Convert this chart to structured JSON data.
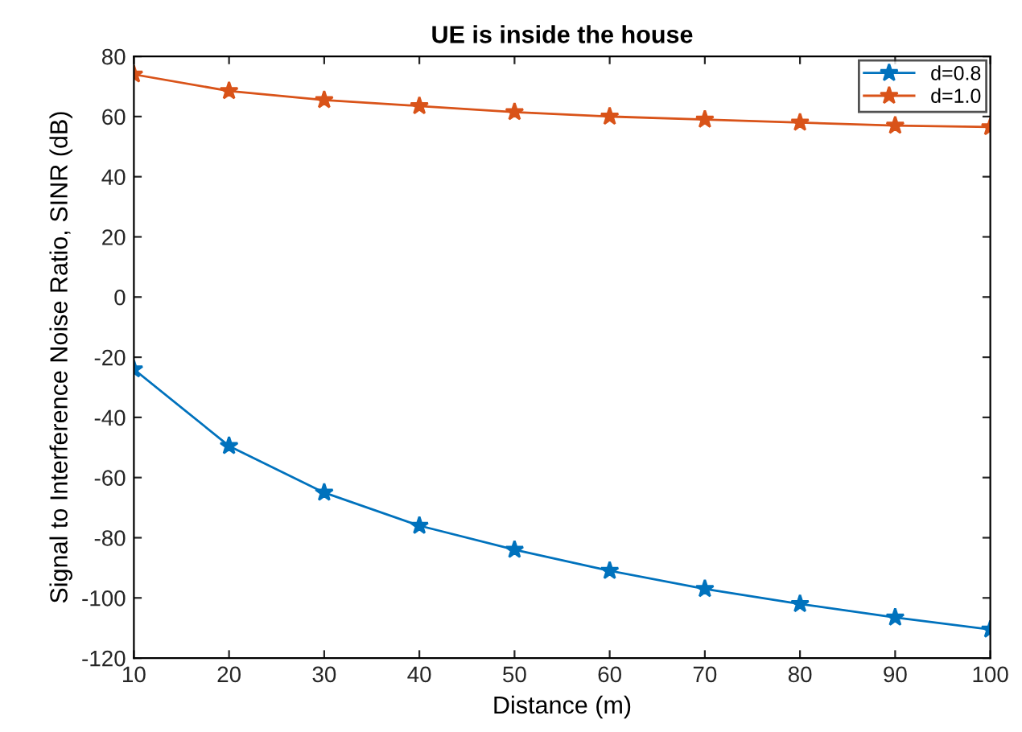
{
  "chart_data": {
    "type": "line",
    "title": "UE is inside the house",
    "xlabel": "Distance (m)",
    "ylabel": "Signal to Interference Noise Ratio, SINR (dB)",
    "x": [
      10,
      20,
      30,
      40,
      50,
      60,
      70,
      80,
      90,
      100
    ],
    "series": [
      {
        "name": "d=0.8",
        "color": "#0072bd",
        "values": [
          -24,
          -49.5,
          -65,
          -76,
          -84,
          -91,
          -97,
          -102,
          -106.5,
          -110.5
        ]
      },
      {
        "name": "d=1.0",
        "color": "#d95319",
        "values": [
          74,
          68.5,
          65.5,
          63.5,
          61.5,
          60,
          59,
          58,
          57,
          56.5
        ]
      }
    ],
    "xlim": [
      10,
      100
    ],
    "xticks": [
      10,
      20,
      30,
      40,
      50,
      60,
      70,
      80,
      90,
      100
    ],
    "ylim": [
      -120,
      80
    ],
    "yticks": [
      -120,
      -100,
      -80,
      -60,
      -40,
      -20,
      0,
      20,
      40,
      60,
      80
    ],
    "grid": false,
    "legend": "top right",
    "marker": "star",
    "line_style": "solid"
  }
}
